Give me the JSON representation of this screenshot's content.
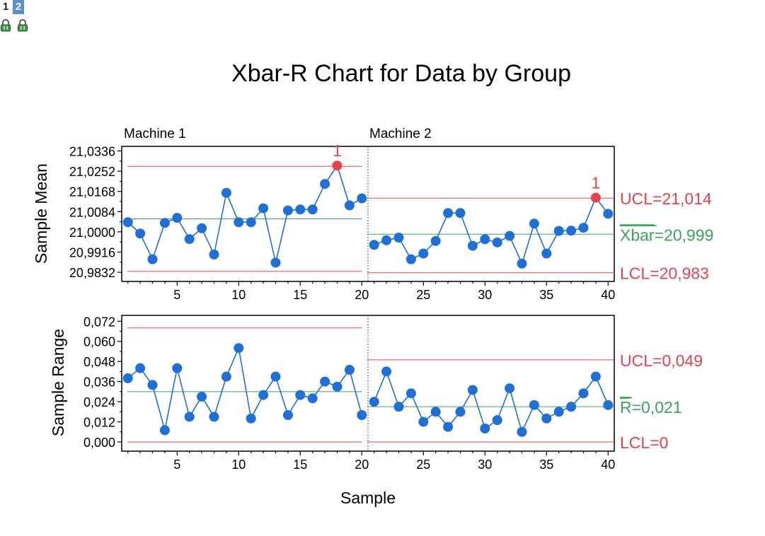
{
  "graph_tabs": [
    "1",
    "2"
  ],
  "active_tab": "2",
  "colors": {
    "point": "#1f6fd9",
    "limit": "#e8434a",
    "center": "#3aa55a",
    "violation": "#e8434a",
    "text": "#000000"
  },
  "chart_data": [
    {
      "type": "line",
      "title": "Xbar-R Chart for Data by Group",
      "panel": "Xbar",
      "xlabel": "Sample",
      "ylabel": "Sample Mean",
      "groups": [
        "Machine 1",
        "Machine 2"
      ],
      "x_ticks": [
        "5",
        "10",
        "15",
        "20",
        "25",
        "30",
        "35",
        "40"
      ],
      "y_ticks": [
        "21,0336",
        "21,0252",
        "21,0168",
        "21,0084",
        "21,0000",
        "20,9916",
        "20,9832"
      ],
      "ylim": [
        20.9794,
        21.0355
      ],
      "xlim": [
        0.5,
        40.5
      ],
      "series": [
        {
          "x": [
            1,
            2,
            3,
            4,
            5,
            6,
            7,
            8,
            9,
            10,
            11,
            12,
            13,
            14,
            15,
            16,
            17,
            18,
            19,
            20
          ],
          "values": [
            21.004,
            20.9993,
            20.9886,
            21.0037,
            21.0058,
            20.997,
            21.0015,
            20.9906,
            21.0162,
            21.004,
            21.004,
            21.0098,
            20.9872,
            21.0089,
            21.0093,
            21.0093,
            21.0199,
            21.0275,
            21.011,
            21.0139
          ]
        },
        {
          "x": [
            21,
            22,
            23,
            24,
            25,
            26,
            27,
            28,
            29,
            30,
            31,
            32,
            33,
            34,
            35,
            36,
            37,
            38,
            39,
            40
          ],
          "values": [
            20.9946,
            20.9965,
            20.9976,
            20.9886,
            20.991,
            20.9962,
            21.0078,
            21.0078,
            20.9942,
            20.9969,
            20.9956,
            20.9983,
            20.9868,
            21.0034,
            20.991,
            21.0004,
            21.0005,
            21.0017,
            21.0142,
            21.0075
          ]
        }
      ],
      "limits": [
        {
          "group": "Machine 1",
          "ucl": 21.0272,
          "center": 21.0054,
          "lcl": 20.9836
        },
        {
          "group": "Machine 2",
          "ucl": 21.014,
          "center": 20.999,
          "lcl": 20.983
        }
      ],
      "violations": [
        {
          "x": 18,
          "y": 21.0275,
          "label": "1"
        },
        {
          "x": 39,
          "y": 21.0142,
          "label": "1"
        }
      ],
      "limit_labels": {
        "ucl": "UCL=21,014",
        "center_symbol": "Xbar",
        "center_value": "=20,999",
        "lcl": "LCL=20,983"
      }
    },
    {
      "type": "line",
      "panel": "R",
      "xlabel": "Sample",
      "ylabel": "Sample Range",
      "x_ticks": [
        "5",
        "10",
        "15",
        "20",
        "25",
        "30",
        "35",
        "40"
      ],
      "y_ticks": [
        "0,072",
        "0,060",
        "0,048",
        "0,036",
        "0,024",
        "0,012",
        "0,000"
      ],
      "ylim": [
        -0.0055,
        0.0755
      ],
      "xlim": [
        0.5,
        40.5
      ],
      "series": [
        {
          "x": [
            1,
            2,
            3,
            4,
            5,
            6,
            7,
            8,
            9,
            10,
            11,
            12,
            13,
            14,
            15,
            16,
            17,
            18,
            19,
            20
          ],
          "values": [
            0.038,
            0.044,
            0.034,
            0.007,
            0.044,
            0.015,
            0.027,
            0.015,
            0.039,
            0.056,
            0.014,
            0.028,
            0.039,
            0.016,
            0.028,
            0.026,
            0.036,
            0.033,
            0.043,
            0.016
          ]
        },
        {
          "x": [
            21,
            22,
            23,
            24,
            25,
            26,
            27,
            28,
            29,
            30,
            31,
            32,
            33,
            34,
            35,
            36,
            37,
            38,
            39,
            40
          ],
          "values": [
            0.024,
            0.042,
            0.021,
            0.029,
            0.012,
            0.018,
            0.009,
            0.018,
            0.031,
            0.008,
            0.013,
            0.032,
            0.006,
            0.022,
            0.014,
            0.018,
            0.021,
            0.029,
            0.039,
            0.022
          ]
        }
      ],
      "limits": [
        {
          "group": "Machine 1",
          "ucl": 0.068,
          "center": 0.03,
          "lcl": 0.0
        },
        {
          "group": "Machine 2",
          "ucl": 0.049,
          "center": 0.021,
          "lcl": 0.0
        }
      ],
      "limit_labels": {
        "ucl": "UCL=0,049",
        "center_symbol": "R",
        "center_value": "=0,021",
        "lcl": "LCL=0"
      }
    }
  ]
}
